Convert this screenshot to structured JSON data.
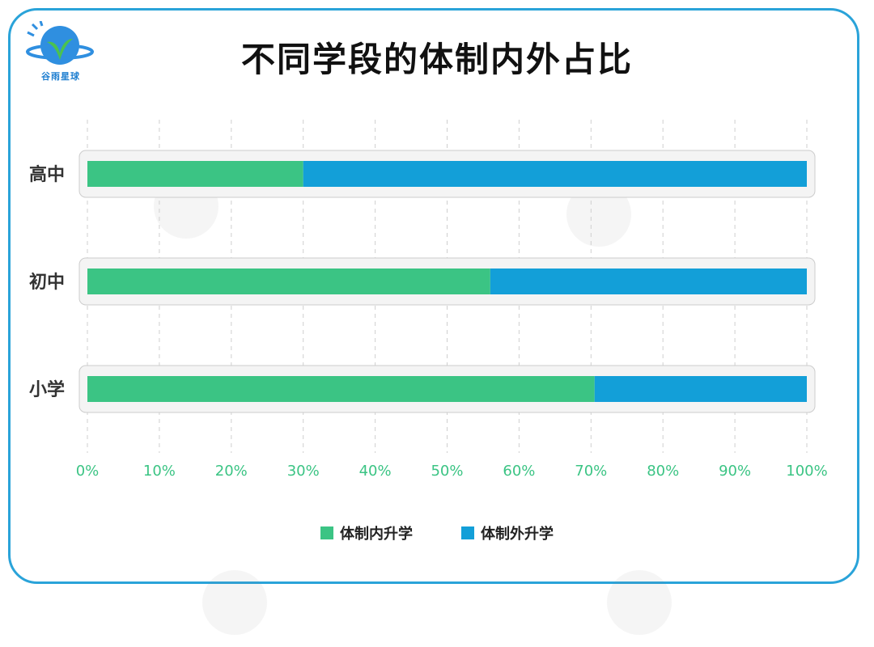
{
  "logo": {
    "text": "谷雨星球"
  },
  "title": "不同学段的体制内外占比",
  "colors": {
    "inside": "#3bc484",
    "outside": "#139fd8",
    "tick": "#3bc484",
    "frame": "#2aa3d9"
  },
  "chart_data": {
    "type": "bar",
    "orientation": "horizontal",
    "stacked": true,
    "categories": [
      "高中",
      "初中",
      "小学"
    ],
    "series": [
      {
        "name": "体制内升学",
        "values": [
          30,
          56,
          70.5
        ]
      },
      {
        "name": "体制外升学",
        "values": [
          70,
          44,
          29.5
        ]
      }
    ],
    "xlim": [
      0,
      100
    ],
    "xticks": [
      "0%",
      "10%",
      "20%",
      "30%",
      "40%",
      "50%",
      "60%",
      "70%",
      "80%",
      "90%",
      "100%"
    ],
    "grid": true,
    "legend_position": "bottom"
  }
}
